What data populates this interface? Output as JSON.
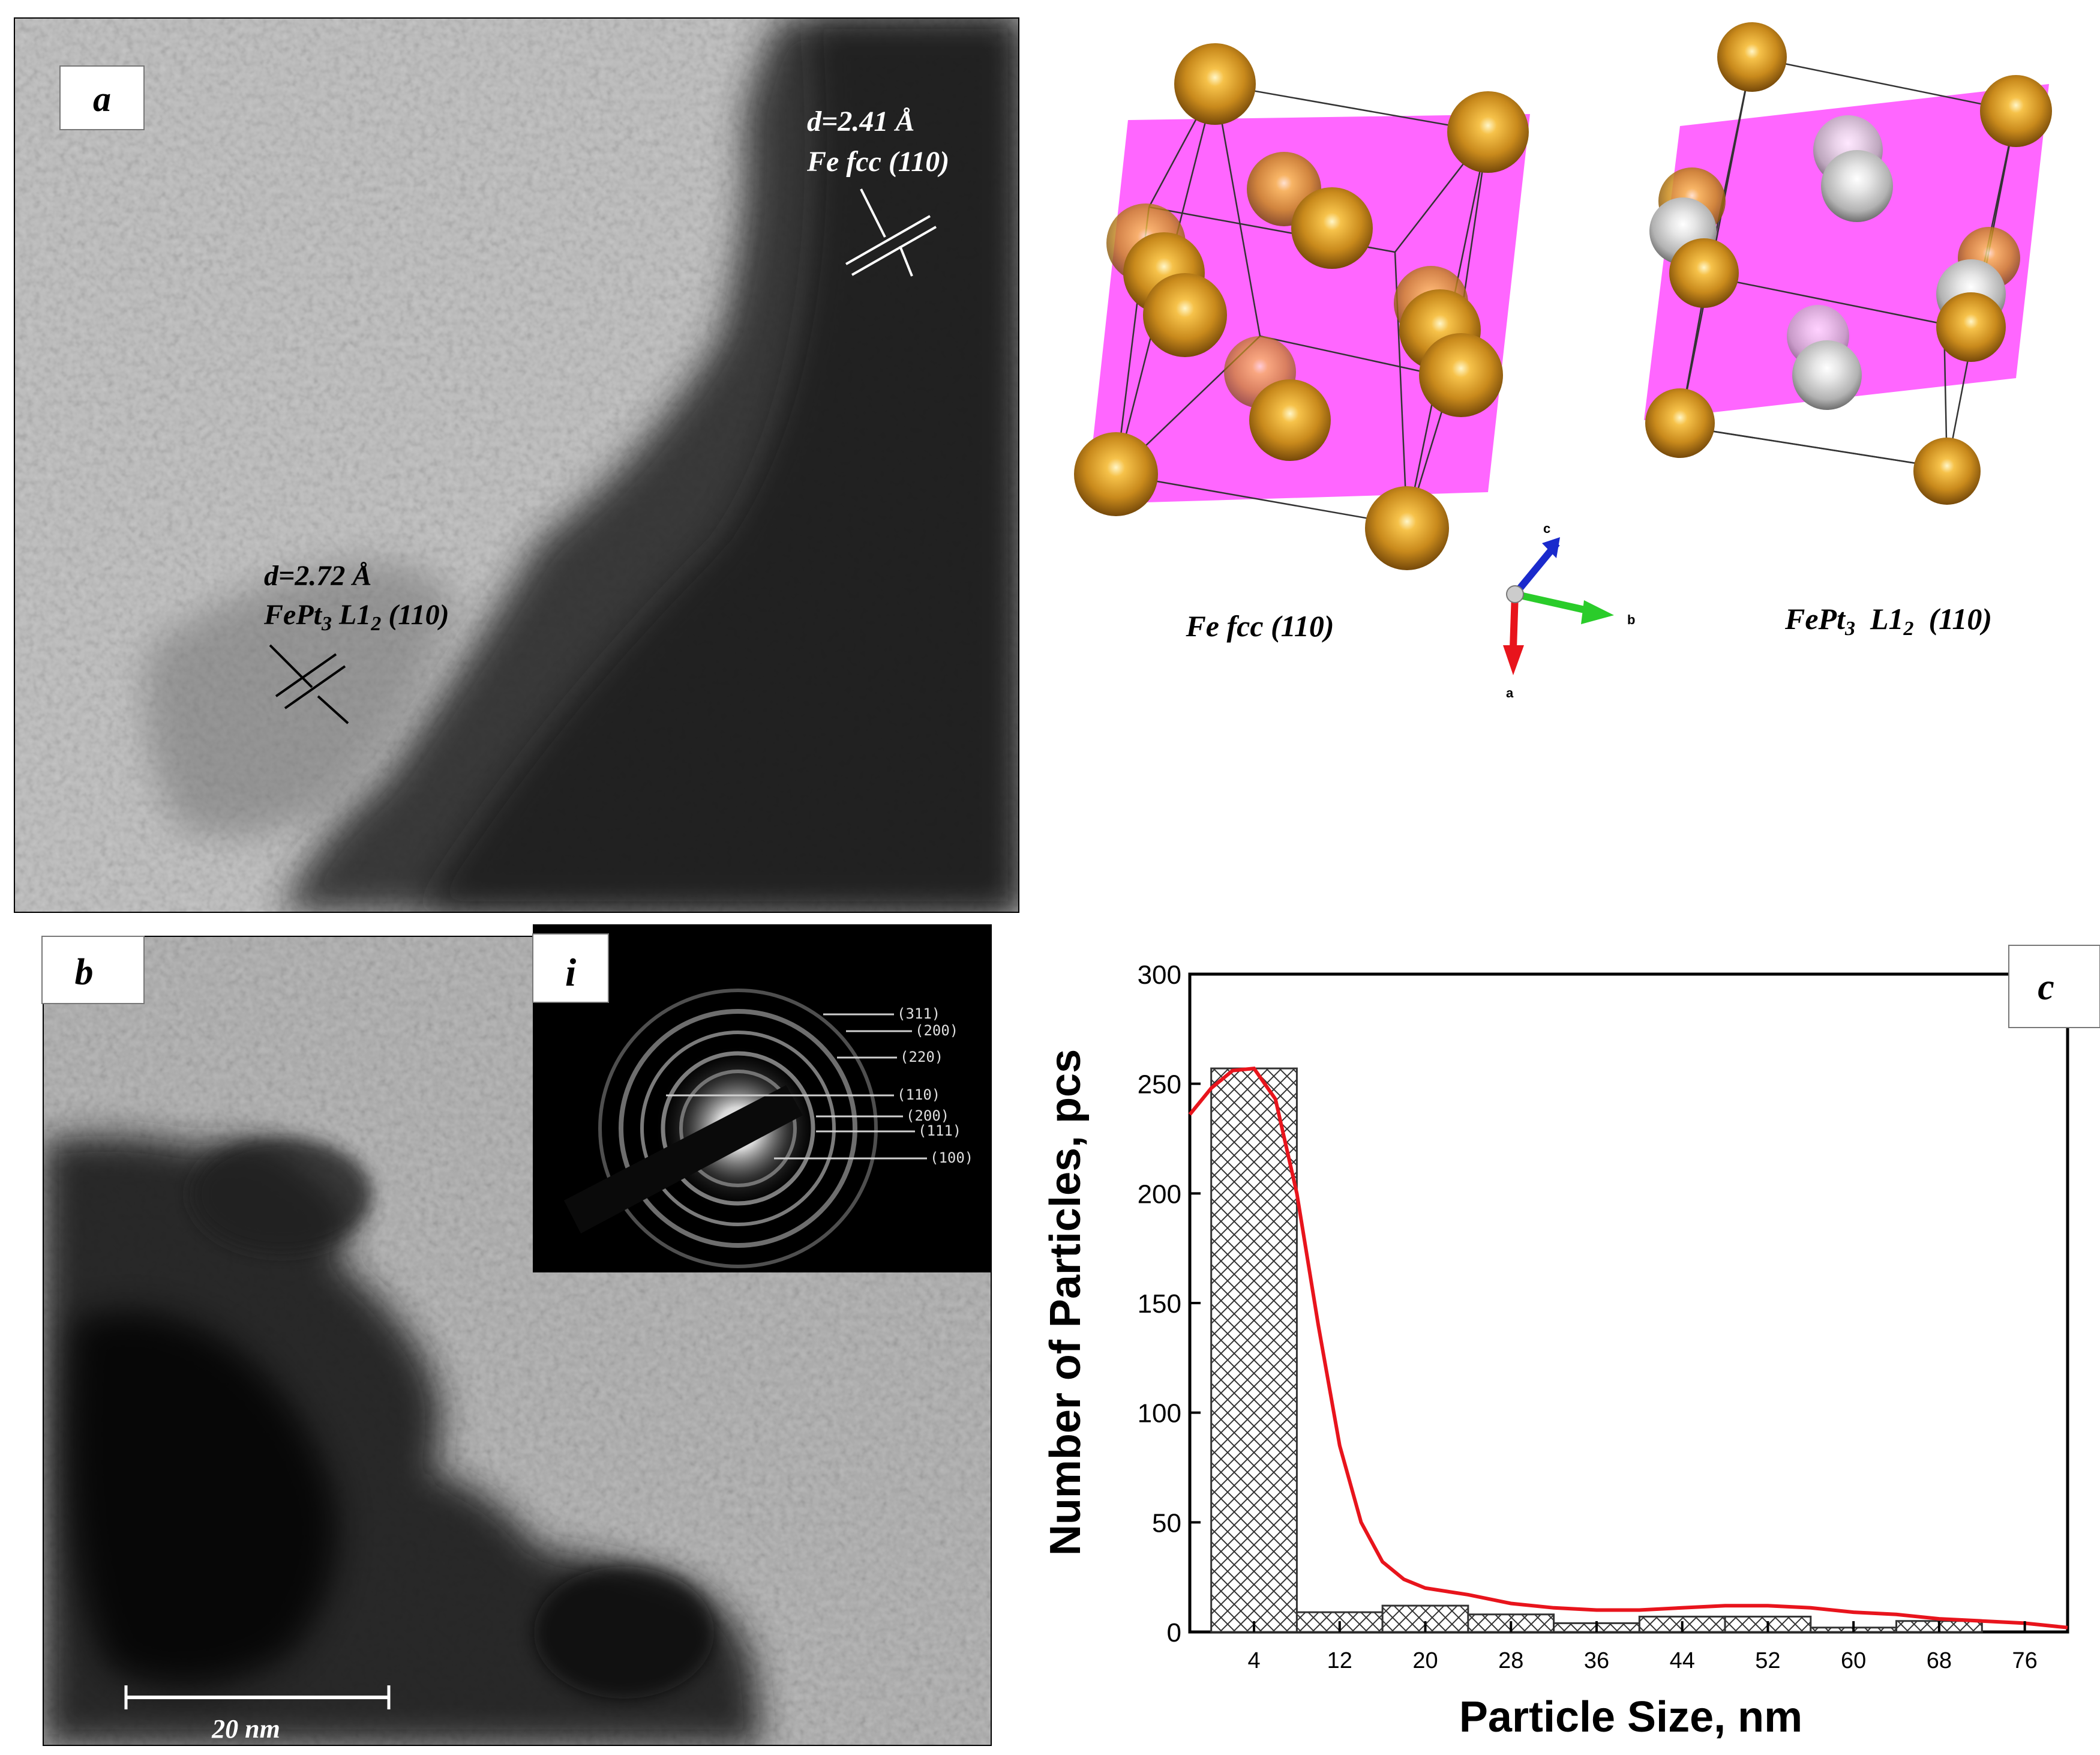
{
  "panel_a": {
    "label": "a",
    "annotation_1": {
      "d": "d=2.41 Å",
      "phase": "Fe fcc (110)"
    },
    "annotation_2": {
      "d": "d=2.72 Å",
      "phase_main": "FePt",
      "phase_sub1": "3",
      "phase_mid": " L1",
      "phase_sub2": "2",
      "phase_tail": " (110)"
    }
  },
  "crystal": {
    "left_caption": "Fe fcc (110)",
    "right_caption": {
      "main": "FePt",
      "sub1": "3",
      "mid": "  L1",
      "sub2": "2",
      "tail": "  (110)"
    },
    "axes": {
      "a": "a",
      "b": "b",
      "c": "c"
    },
    "colors": {
      "fe": "#c8861a",
      "pt": "#d8d8d8",
      "plane": "#ff33ff"
    }
  },
  "panel_b": {
    "label": "b",
    "scale_bar": "20 nm",
    "inset": {
      "label": "i",
      "rings": [
        "(311)",
        "(200)",
        "(220)",
        "(110)",
        "(200)",
        "(111)",
        "(100)"
      ]
    }
  },
  "panel_c": {
    "label": "c",
    "chart_data": {
      "type": "bar",
      "xlabel": "Particle Size, nm",
      "ylabel": "Number of Particles, pcs",
      "x_ticks": [
        4,
        12,
        20,
        28,
        36,
        44,
        52,
        60,
        68,
        76
      ],
      "y_ticks": [
        0,
        50,
        100,
        150,
        200,
        250,
        300
      ],
      "xlim": [
        -2,
        80
      ],
      "ylim": [
        0,
        300
      ],
      "bin_width": 8,
      "bin_centers": [
        4,
        12,
        20,
        28,
        36,
        44,
        52,
        60,
        68
      ],
      "values": [
        257,
        9,
        12,
        8,
        4,
        7,
        7,
        2,
        5
      ],
      "fit_curve": {
        "color": "#e8141c",
        "x": [
          -2,
          0,
          2,
          4,
          6,
          8,
          10,
          12,
          14,
          16,
          18,
          20,
          24,
          28,
          32,
          36,
          40,
          44,
          48,
          52,
          56,
          60,
          64,
          68,
          72,
          76,
          80
        ],
        "y": [
          236,
          248,
          256,
          257,
          243,
          200,
          140,
          85,
          50,
          32,
          24,
          20,
          17,
          13,
          11,
          10,
          10,
          11,
          12,
          12,
          11,
          9,
          8,
          6,
          5,
          4,
          2
        ]
      }
    }
  }
}
